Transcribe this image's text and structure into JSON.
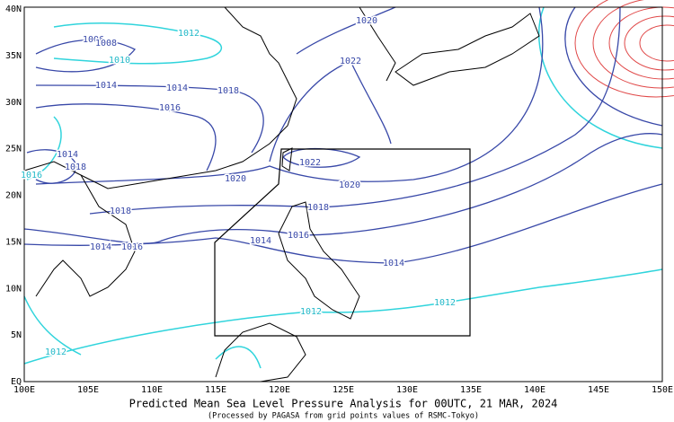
{
  "title": "Predicted Mean Sea Level Pressure Analysis for 00UTC, 21 MAR, 2024",
  "subtitle": "(Processed by PAGASA from grid points values of RSMC-Tokyo)",
  "lat_labels": [
    "40N",
    "35N",
    "30N",
    "25N",
    "20N",
    "15N",
    "10N",
    "5N",
    "EQ"
  ],
  "lon_labels": [
    "100E",
    "105E",
    "110E",
    "115E",
    "120E",
    "125E",
    "130E",
    "135E",
    "140E",
    "145E",
    "150E"
  ],
  "isobar_labels": [
    "1020",
    "1022",
    "1014",
    "1014",
    "1018",
    "1016",
    "1014",
    "1018",
    "1020",
    "1022",
    "1020",
    "1018",
    "1018",
    "1014",
    "1016",
    "1014",
    "1016",
    "1014",
    "1012",
    "1010",
    "1012",
    "1012",
    "1012",
    "1016",
    "1006",
    "1008"
  ]
}
